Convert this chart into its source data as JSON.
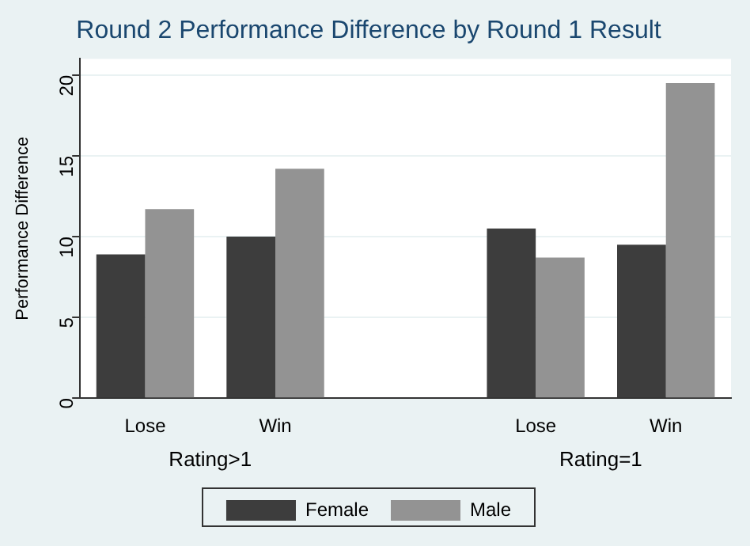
{
  "chart_data": {
    "type": "bar",
    "title": "Round 2 Performance Difference by Round 1 Result",
    "ylabel": "Performance Difference",
    "categories": [
      "Lose",
      "Win",
      null,
      "Lose",
      "Win"
    ],
    "series": [
      {
        "name": "Female",
        "color": "#3d3d3d",
        "values": [
          8.9,
          10.0,
          null,
          10.5,
          9.5
        ]
      },
      {
        "name": "Male",
        "color": "#939393",
        "values": [
          11.7,
          14.2,
          null,
          8.7,
          19.5
        ]
      }
    ],
    "annotations": [
      "Rating>1",
      "Rating=1"
    ],
    "ylim": [
      0,
      21
    ],
    "yticks": [
      0,
      5,
      10,
      15,
      20
    ],
    "grid": "y",
    "legend": "bottom"
  }
}
